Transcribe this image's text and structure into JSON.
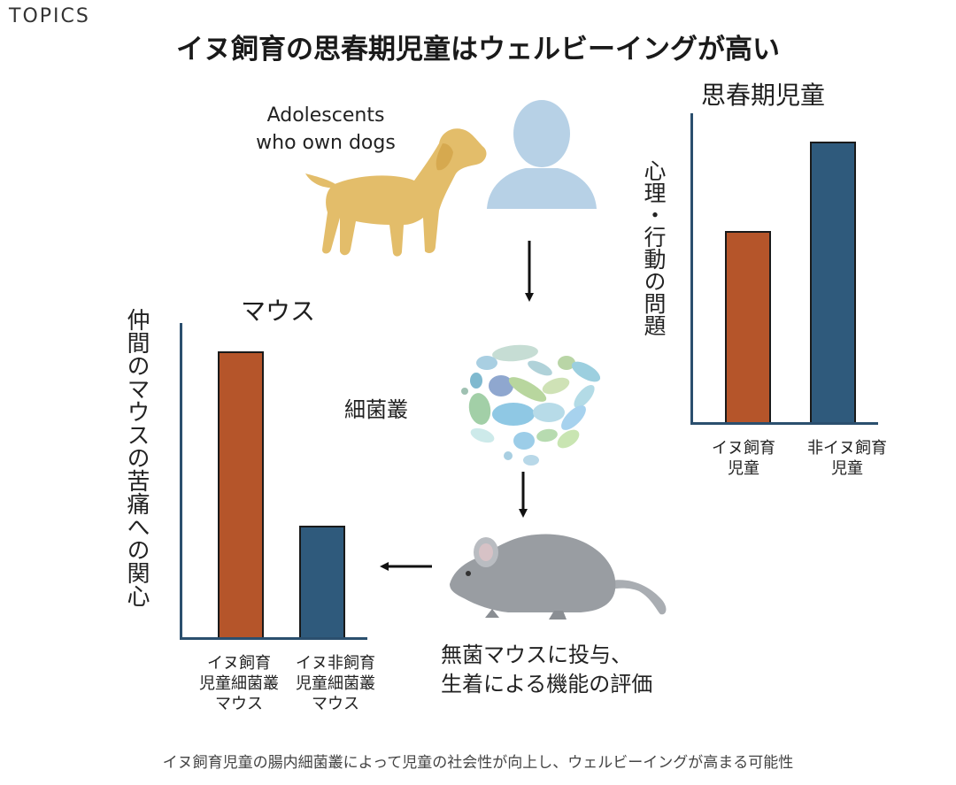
{
  "header": {
    "tag": "TOPICS",
    "title": "イヌ飼育の思春期児童はウェルビーイングが高い"
  },
  "flow": {
    "adolescents_label_line1": "Adolescents",
    "adolescents_label_line2": "who own dogs",
    "microbiota_label": "細菌叢",
    "mouse_step_line1": "無菌マウスに投与、",
    "mouse_step_line2": "生着による機能の評価"
  },
  "colors": {
    "orange": "#b5552a",
    "blue": "#2f5a7c",
    "dog": "#e3bd6a",
    "person": "#b7d1e6",
    "mouse": "#999da2"
  },
  "chart_data": [
    {
      "type": "bar",
      "title": "思春期児童",
      "ylabel": "心理・行動の問題",
      "categories": [
        [
          "イヌ飼育",
          "児童"
        ],
        [
          "非イヌ飼育",
          "児童"
        ]
      ],
      "values": [
        68,
        100
      ],
      "ylim": [
        0,
        110
      ]
    },
    {
      "type": "bar",
      "title": "マウス",
      "ylabel": "仲間のマウスの苦痛への関心",
      "categories": [
        [
          "イヌ飼育",
          "児童細菌叢",
          "マウス"
        ],
        [
          "イヌ非飼育",
          "児童細菌叢",
          "マウス"
        ]
      ],
      "values": [
        100,
        39
      ],
      "ylim": [
        0,
        110
      ]
    }
  ],
  "footer": {
    "caption": "イヌ飼育児童の腸内細菌叢によって児童の社会性が向上し、ウェルビーイングが高まる可能性"
  }
}
